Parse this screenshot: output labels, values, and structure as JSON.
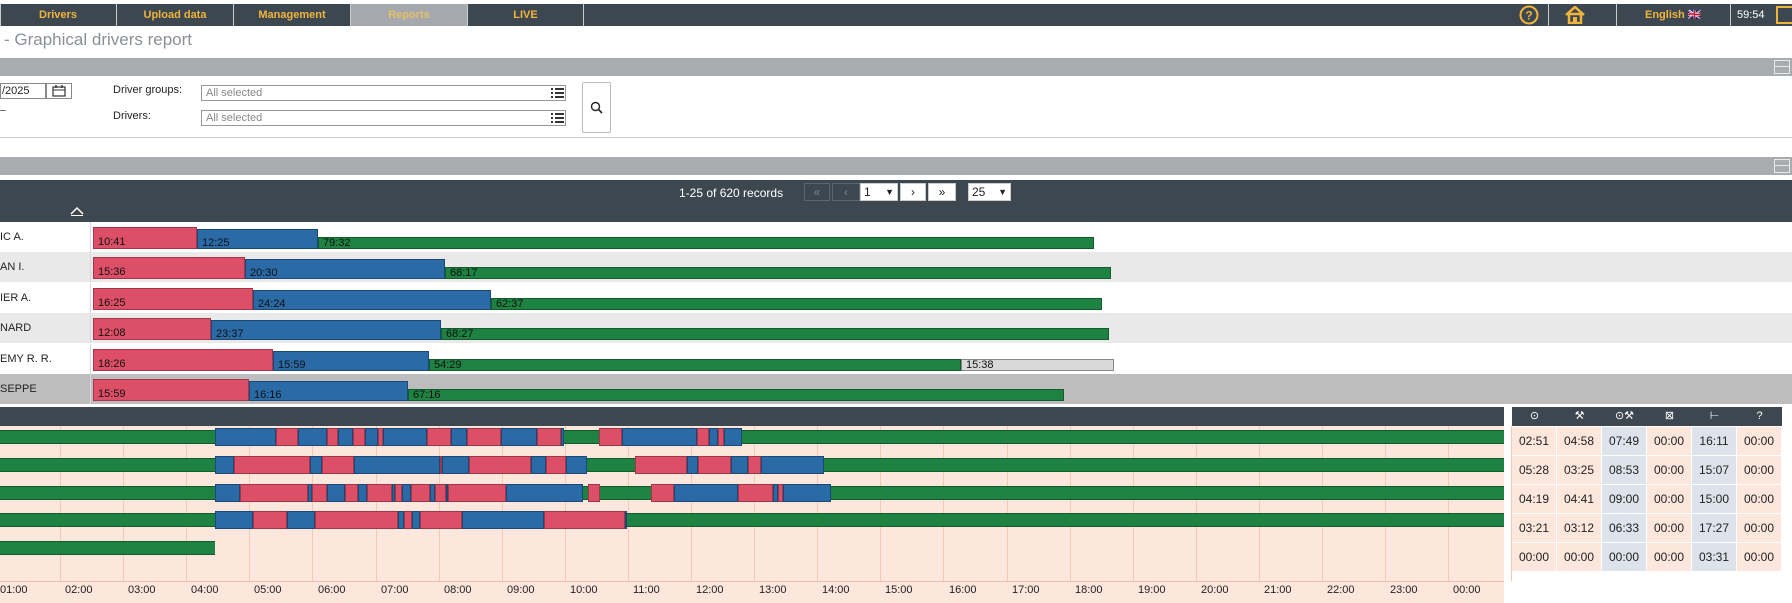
{
  "nav": {
    "tabs": [
      "Drivers",
      "Upload data",
      "Management",
      "Reports",
      "LIVE"
    ],
    "active_tab": "Reports",
    "language": "English 🇬🇧",
    "timer": "59:54"
  },
  "page_title": "- Graphical drivers report",
  "filters": {
    "date_value": "/2025",
    "driver_groups_label": "Driver groups:",
    "driver_groups_value": "All selected",
    "drivers_label": "Drivers:",
    "drivers_value": "All selected"
  },
  "pagination": {
    "records_text": "1-25 of 620 records",
    "page": "1",
    "page_size": "25"
  },
  "drivers": [
    {
      "name": "IC A.",
      "bars": [
        {
          "type": "red",
          "label": "10:41"
        },
        {
          "type": "blue",
          "label": "12:25"
        },
        {
          "type": "green",
          "label": "79:32"
        }
      ]
    },
    {
      "name": "AN I.",
      "bars": [
        {
          "type": "red",
          "label": "15:36"
        },
        {
          "type": "blue",
          "label": "20:30"
        },
        {
          "type": "green",
          "label": "68:17"
        }
      ]
    },
    {
      "name": "IER A.",
      "bars": [
        {
          "type": "red",
          "label": "16:25"
        },
        {
          "type": "blue",
          "label": "24:24"
        },
        {
          "type": "green",
          "label": "62:37"
        }
      ]
    },
    {
      "name": "NARD",
      "bars": [
        {
          "type": "red",
          "label": "12:08"
        },
        {
          "type": "blue",
          "label": "23:37"
        },
        {
          "type": "green",
          "label": "68:27"
        }
      ]
    },
    {
      "name": "EMY R. R.",
      "bars": [
        {
          "type": "red",
          "label": "18:26"
        },
        {
          "type": "blue",
          "label": "15:59"
        },
        {
          "type": "green",
          "label": "54:29"
        },
        {
          "type": "grey",
          "label": "15:38"
        }
      ]
    },
    {
      "name": "SEPPE",
      "bars": [
        {
          "type": "red",
          "label": "15:59"
        },
        {
          "type": "blue",
          "label": "16:16"
        },
        {
          "type": "green",
          "label": "67:16"
        }
      ]
    }
  ],
  "timeline": {
    "hours": [
      "01:00",
      "02:00",
      "03:00",
      "04:00",
      "05:00",
      "06:00",
      "07:00",
      "08:00",
      "09:00",
      "10:00",
      "11:00",
      "12:00",
      "13:00",
      "14:00",
      "15:00",
      "16:00",
      "17:00",
      "18:00",
      "19:00",
      "20:00",
      "21:00",
      "22:00",
      "23:00",
      "00:00"
    ]
  },
  "summary": {
    "icons": [
      "steering-wheel-icon",
      "tools-icon",
      "wheel-tools-icon",
      "availability-icon",
      "rest-icon",
      "unknown-icon"
    ],
    "icon_glyphs": [
      "⊙",
      "⚒",
      "⊙⚒",
      "⊠",
      "⊢",
      "?"
    ],
    "rows": [
      [
        "02:51",
        "04:58",
        "07:49",
        "00:00",
        "16:11",
        "00:00"
      ],
      [
        "05:28",
        "03:25",
        "08:53",
        "00:00",
        "15:07",
        "00:00"
      ],
      [
        "04:19",
        "04:41",
        "09:00",
        "00:00",
        "15:00",
        "00:00"
      ],
      [
        "03:21",
        "03:12",
        "06:33",
        "00:00",
        "17:27",
        "00:00"
      ],
      [
        "00:00",
        "00:00",
        "00:00",
        "00:00",
        "03:31",
        "00:00"
      ]
    ]
  },
  "colors": {
    "drive": "#dc4f66",
    "work": "#2a6aa6",
    "rest": "#1d8242",
    "header": "#3d4750",
    "accent": "#f0b43c"
  }
}
